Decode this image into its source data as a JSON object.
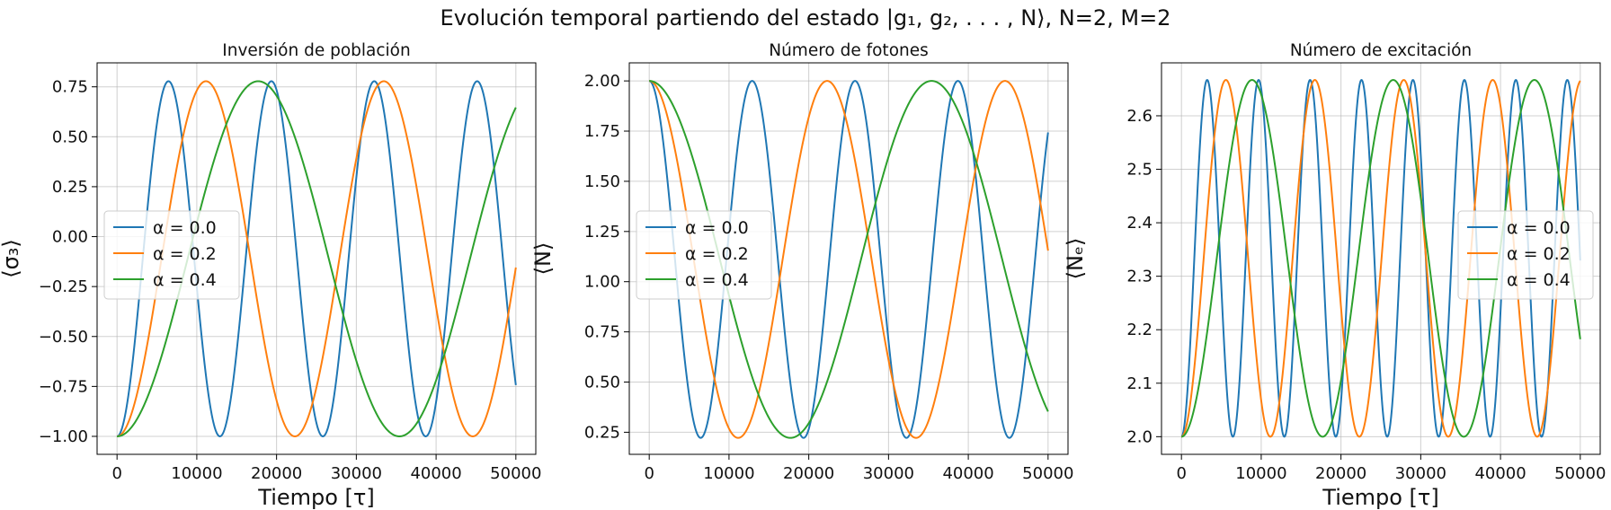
{
  "figure": {
    "suptitle": "Evolución temporal partiendo del estado |g₁, g₂, . . . , N⟩, N=2, M=2"
  },
  "colors": {
    "alpha_0": "#1f77b4",
    "alpha_02": "#ff7f0e",
    "alpha_04": "#2ca02c",
    "grid": "#b0b0b0"
  },
  "chart_data": [
    {
      "type": "line",
      "title": "Inversión de población",
      "xlabel": "Tiempo [τ]",
      "ylabel": "⟨σ₃⟩",
      "xlim": [
        -2500,
        52500
      ],
      "ylim": [
        -1.09,
        0.87
      ],
      "xticks": [
        0,
        10000,
        20000,
        30000,
        40000,
        50000
      ],
      "yticks": [
        -1.0,
        -0.75,
        -0.5,
        -0.25,
        0.0,
        0.25,
        0.5,
        0.75
      ],
      "ytick_labels": [
        "−1.00",
        "−0.75",
        "−0.50",
        "−0.25",
        "0.00",
        "0.25",
        "0.50",
        "0.75"
      ],
      "grid": true,
      "legend_position": "center-left",
      "x": [
        0,
        50000
      ],
      "series": [
        {
          "name": "α = 0.0",
          "color": "#1f77b4",
          "model": "cos",
          "min": -1.0,
          "max": 0.778,
          "period": 12900,
          "start": "min"
        },
        {
          "name": "α = 0.2",
          "color": "#ff7f0e",
          "model": "cos",
          "min": -1.0,
          "max": 0.778,
          "period": 22300,
          "start": "min"
        },
        {
          "name": "α = 0.4",
          "color": "#2ca02c",
          "model": "cos",
          "min": -1.0,
          "max": 0.778,
          "period": 35400,
          "start": "min"
        }
      ]
    },
    {
      "type": "line",
      "title": "Número de  fotones",
      "xlabel": "",
      "ylabel": "⟨N⟩",
      "xlim": [
        -2500,
        52500
      ],
      "ylim": [
        0.14,
        2.09
      ],
      "xticks": [
        0,
        10000,
        20000,
        30000,
        40000,
        50000
      ],
      "yticks": [
        0.25,
        0.5,
        0.75,
        1.0,
        1.25,
        1.5,
        1.75,
        2.0
      ],
      "ytick_labels": [
        "0.25",
        "0.50",
        "0.75",
        "1.00",
        "1.25",
        "1.50",
        "1.75",
        "2.00"
      ],
      "grid": true,
      "legend_position": "center-left",
      "x": [
        0,
        50000
      ],
      "series": [
        {
          "name": "α = 0.0",
          "color": "#1f77b4",
          "model": "cos",
          "min": 0.222,
          "max": 2.0,
          "period": 12900,
          "start": "max"
        },
        {
          "name": "α = 0.2",
          "color": "#ff7f0e",
          "model": "cos",
          "min": 0.222,
          "max": 2.0,
          "period": 22300,
          "start": "max"
        },
        {
          "name": "α = 0.4",
          "color": "#2ca02c",
          "model": "cos",
          "min": 0.222,
          "max": 2.0,
          "period": 35400,
          "start": "max"
        }
      ]
    },
    {
      "type": "line",
      "title": "Número de  excitación",
      "xlabel": "Tiempo [τ]",
      "ylabel": "⟨Nₑ⟩",
      "xlim": [
        -2500,
        52500
      ],
      "ylim": [
        1.967,
        2.699
      ],
      "xticks": [
        0,
        10000,
        20000,
        30000,
        40000,
        50000
      ],
      "yticks": [
        2.0,
        2.1,
        2.2,
        2.3,
        2.4,
        2.5,
        2.6
      ],
      "ytick_labels": [
        "2.0",
        "2.1",
        "2.2",
        "2.3",
        "2.4",
        "2.5",
        "2.6"
      ],
      "grid": true,
      "legend_position": "center-right",
      "x": [
        0,
        50000
      ],
      "series": [
        {
          "name": "α = 0.0",
          "color": "#1f77b4",
          "model": "cos",
          "min": 2.0,
          "max": 2.667,
          "period": 6450,
          "start": "min"
        },
        {
          "name": "α = 0.2",
          "color": "#ff7f0e",
          "model": "cos",
          "min": 2.0,
          "max": 2.667,
          "period": 11150,
          "start": "min"
        },
        {
          "name": "α = 0.4",
          "color": "#2ca02c",
          "model": "cos",
          "min": 2.0,
          "max": 2.667,
          "period": 17700,
          "start": "min"
        }
      ]
    }
  ]
}
